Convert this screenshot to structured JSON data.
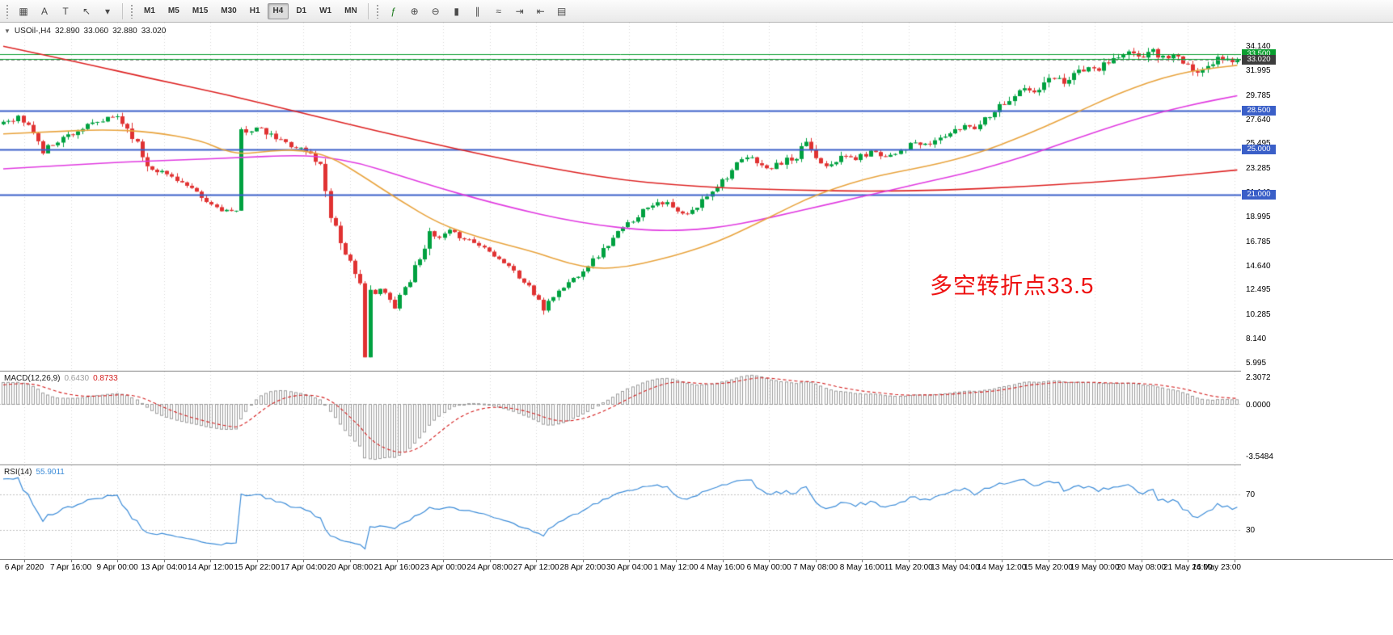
{
  "toolbar": {
    "left_tools": [
      {
        "name": "chart-grid-icon",
        "glyph": "▦"
      },
      {
        "name": "text-annotation-tool",
        "glyph": "A"
      },
      {
        "name": "text-label-tool",
        "glyph": "T"
      },
      {
        "name": "arrow-tool",
        "glyph": "↖"
      },
      {
        "name": "tools-dropdown-icon",
        "glyph": "▾"
      }
    ],
    "timeframes": [
      "M1",
      "M5",
      "M15",
      "M30",
      "H1",
      "H4",
      "D1",
      "W1",
      "MN"
    ],
    "active_timeframe": "H4",
    "right_tools": [
      {
        "name": "indicators-icon",
        "glyph": "ƒ"
      },
      {
        "name": "zoom-in-icon",
        "glyph": "⊕"
      },
      {
        "name": "zoom-out-icon",
        "glyph": "⊖"
      },
      {
        "name": "candlestick-mode-icon",
        "glyph": "▮"
      },
      {
        "name": "bar-chart-mode-icon",
        "glyph": "∥"
      },
      {
        "name": "line-chart-mode-icon",
        "glyph": "≈"
      },
      {
        "name": "auto-scroll-icon",
        "glyph": "⇥"
      },
      {
        "name": "chart-shift-icon",
        "glyph": "⇤"
      },
      {
        "name": "templates-icon",
        "glyph": "▤"
      }
    ]
  },
  "chart": {
    "title": {
      "collapse_glyph": "▼",
      "symbol_period": "USOil-,H4",
      "open": "32.890",
      "high": "33.060",
      "low": "32.880",
      "close": "33.020"
    },
    "annotation": {
      "text": "多空转折点33.5",
      "color": "#ee1111"
    },
    "price_axis": {
      "ticks": [
        "34.140",
        "31.995",
        "29.785",
        "27.640",
        "25.495",
        "23.285",
        "21.140",
        "18.995",
        "16.785",
        "14.640",
        "12.495",
        "10.285",
        "8.140",
        "5.995"
      ],
      "line_labels": [
        {
          "text": "33.500",
          "price": 33.5,
          "bg": "#0a9e2f"
        },
        {
          "text": "33.020",
          "price": 33.02,
          "bg": "#3d3d3d"
        },
        {
          "text": "28.500",
          "price": 28.5,
          "bg": "#3a5fc8"
        },
        {
          "text": "25.000",
          "price": 25.0,
          "bg": "#3a5fc8"
        },
        {
          "text": "21.000",
          "price": 21.0,
          "bg": "#3a5fc8"
        }
      ]
    },
    "time_axis": {
      "labels": [
        "6 Apr 2020",
        "7 Apr 16:00",
        "9 Apr 00:00",
        "13 Apr 04:00",
        "14 Apr 12:00",
        "15 Apr 22:00",
        "17 Apr 04:00",
        "20 Apr 08:00",
        "21 Apr 16:00",
        "23 Apr 00:00",
        "24 Apr 08:00",
        "27 Apr 12:00",
        "28 Apr 20:00",
        "30 Apr 04:00",
        "1 May 12:00",
        "4 May 16:00",
        "6 May 00:00",
        "7 May 08:00",
        "8 May 16:00",
        "11 May 20:00",
        "13 May 04:00",
        "14 May 12:00",
        "15 May 20:00",
        "19 May 00:00",
        "20 May 08:00",
        "21 May 16:00",
        "24 May 23:00"
      ]
    }
  },
  "chart_data": {
    "type": "candlestick",
    "symbol": "USOil-,H4",
    "title": "USOil-,H4 32.890 33.060 32.880 33.020",
    "price_range": [
      5.995,
      34.14
    ],
    "visible_candles": 250,
    "noise_seed": 11,
    "bull_color": "#00a140",
    "bear_color": "#e03232",
    "close_waypoints": [
      [
        0,
        27.5
      ],
      [
        3,
        27.9
      ],
      [
        6,
        26.6
      ],
      [
        8,
        24.8
      ],
      [
        10,
        25.6
      ],
      [
        13,
        26.3
      ],
      [
        16,
        26.9
      ],
      [
        19,
        27.4
      ],
      [
        23,
        28.0
      ],
      [
        26,
        26.3
      ],
      [
        29,
        23.6
      ],
      [
        32,
        23.0
      ],
      [
        35,
        22.4
      ],
      [
        38,
        21.4
      ],
      [
        41,
        20.3
      ],
      [
        44,
        19.7
      ],
      [
        47,
        19.4
      ],
      [
        48,
        26.6
      ],
      [
        51,
        26.9
      ],
      [
        54,
        26.2
      ],
      [
        57,
        25.6
      ],
      [
        60,
        25.1
      ],
      [
        62,
        24.6
      ],
      [
        64,
        23.6
      ],
      [
        65,
        21.5
      ],
      [
        66,
        19.3
      ],
      [
        67,
        18.2
      ],
      [
        68,
        16.8
      ],
      [
        69,
        15.9
      ],
      [
        70,
        14.9
      ],
      [
        71,
        13.6
      ],
      [
        72,
        13.0
      ],
      [
        73,
        6.9
      ],
      [
        74,
        12.6
      ],
      [
        75,
        12.0
      ],
      [
        76,
        12.6
      ],
      [
        77,
        12.2
      ],
      [
        78,
        11.6
      ],
      [
        79,
        11.1
      ],
      [
        80,
        12.1
      ],
      [
        81,
        12.8
      ],
      [
        82,
        13.4
      ],
      [
        84,
        15.6
      ],
      [
        86,
        17.4
      ],
      [
        88,
        17.1
      ],
      [
        90,
        17.7
      ],
      [
        92,
        17.3
      ],
      [
        94,
        17.0
      ],
      [
        96,
        16.5
      ],
      [
        98,
        16.1
      ],
      [
        100,
        15.3
      ],
      [
        102,
        14.7
      ],
      [
        104,
        13.6
      ],
      [
        106,
        12.9
      ],
      [
        108,
        11.4
      ],
      [
        109,
        10.8
      ],
      [
        110,
        11.6
      ],
      [
        112,
        12.4
      ],
      [
        114,
        13.2
      ],
      [
        116,
        13.9
      ],
      [
        118,
        14.8
      ],
      [
        120,
        15.6
      ],
      [
        122,
        16.6
      ],
      [
        124,
        17.6
      ],
      [
        126,
        18.4
      ],
      [
        128,
        19.2
      ],
      [
        130,
        20.0
      ],
      [
        132,
        20.4
      ],
      [
        134,
        20.2
      ],
      [
        136,
        19.4
      ],
      [
        138,
        19.2
      ],
      [
        140,
        19.9
      ],
      [
        142,
        21.0
      ],
      [
        144,
        21.9
      ],
      [
        146,
        22.7
      ],
      [
        148,
        23.6
      ],
      [
        150,
        24.3
      ],
      [
        152,
        24.0
      ],
      [
        154,
        23.2
      ],
      [
        156,
        23.6
      ],
      [
        158,
        24.1
      ],
      [
        160,
        24.0
      ],
      [
        162,
        25.8
      ],
      [
        164,
        24.3
      ],
      [
        166,
        23.7
      ],
      [
        168,
        24.1
      ],
      [
        170,
        24.4
      ],
      [
        172,
        24.2
      ],
      [
        174,
        24.6
      ],
      [
        176,
        24.9
      ],
      [
        178,
        24.4
      ],
      [
        180,
        24.8
      ],
      [
        182,
        25.2
      ],
      [
        184,
        25.6
      ],
      [
        186,
        25.3
      ],
      [
        188,
        25.8
      ],
      [
        190,
        26.3
      ],
      [
        192,
        26.6
      ],
      [
        194,
        27.2
      ],
      [
        196,
        27.0
      ],
      [
        198,
        27.8
      ],
      [
        200,
        28.6
      ],
      [
        202,
        29.2
      ],
      [
        204,
        29.8
      ],
      [
        206,
        30.4
      ],
      [
        208,
        30.0
      ],
      [
        210,
        30.8
      ],
      [
        212,
        31.4
      ],
      [
        214,
        31.1
      ],
      [
        216,
        31.8
      ],
      [
        218,
        32.2
      ],
      [
        220,
        32.0
      ],
      [
        222,
        32.5
      ],
      [
        224,
        33.0
      ],
      [
        226,
        33.3
      ],
      [
        228,
        33.6
      ],
      [
        230,
        33.3
      ],
      [
        232,
        33.8
      ],
      [
        234,
        33.2
      ],
      [
        236,
        33.5
      ],
      [
        238,
        32.7
      ],
      [
        240,
        31.8
      ],
      [
        242,
        32.4
      ],
      [
        244,
        32.9
      ],
      [
        246,
        33.1
      ],
      [
        248,
        32.9
      ],
      [
        249,
        33.0
      ]
    ],
    "prehistory_waypoints": [
      [
        0,
        24.5
      ],
      [
        12,
        21.2
      ],
      [
        24,
        20.0
      ],
      [
        36,
        21.8
      ],
      [
        48,
        24.8
      ],
      [
        59,
        27.3
      ]
    ],
    "hlines": [
      {
        "price": 33.5,
        "color": "#0a9e2f",
        "width": 1,
        "dash": false
      },
      {
        "price": 33.05,
        "color": "#0a9e2f",
        "width": 1,
        "dash": false
      },
      {
        "price": 33.02,
        "color": "#9a9a9a",
        "width": 1,
        "dash": true
      },
      {
        "price": 28.5,
        "color": "#3a5fc8",
        "width": 2,
        "dash": false
      },
      {
        "price": 25.0,
        "color": "#3a5fc8",
        "width": 2,
        "dash": false
      },
      {
        "price": 21.0,
        "color": "#3a5fc8",
        "width": 2,
        "dash": false
      }
    ],
    "moving_averages": [
      {
        "name": "slow-ma-red",
        "color": "#dd2222",
        "points": [
          [
            0,
            34.2
          ],
          [
            15,
            32.8
          ],
          [
            30,
            31.3
          ],
          [
            45,
            29.9
          ],
          [
            60,
            28.3
          ],
          [
            75,
            26.7
          ],
          [
            90,
            25.2
          ],
          [
            105,
            23.8
          ],
          [
            115,
            23.0
          ],
          [
            125,
            22.3
          ],
          [
            135,
            21.9
          ],
          [
            145,
            21.6
          ],
          [
            160,
            21.4
          ],
          [
            175,
            21.3
          ],
          [
            190,
            21.4
          ],
          [
            205,
            21.7
          ],
          [
            220,
            22.1
          ],
          [
            235,
            22.6
          ],
          [
            249,
            23.2
          ]
        ]
      },
      {
        "name": "medium-ma-magenta",
        "color": "#e03ae0",
        "points": [
          [
            0,
            23.3
          ],
          [
            12,
            23.6
          ],
          [
            24,
            23.9
          ],
          [
            36,
            24.1
          ],
          [
            48,
            24.3
          ],
          [
            58,
            24.5
          ],
          [
            64,
            24.4
          ],
          [
            72,
            23.8
          ],
          [
            80,
            22.7
          ],
          [
            88,
            21.6
          ],
          [
            96,
            20.6
          ],
          [
            104,
            19.7
          ],
          [
            112,
            18.9
          ],
          [
            120,
            18.3
          ],
          [
            128,
            17.9
          ],
          [
            134,
            17.8
          ],
          [
            140,
            17.9
          ],
          [
            146,
            18.2
          ],
          [
            152,
            18.7
          ],
          [
            158,
            19.3
          ],
          [
            164,
            19.9
          ],
          [
            170,
            20.5
          ],
          [
            176,
            21.1
          ],
          [
            182,
            21.7
          ],
          [
            188,
            22.3
          ],
          [
            194,
            22.9
          ],
          [
            200,
            23.6
          ],
          [
            206,
            24.4
          ],
          [
            212,
            25.3
          ],
          [
            218,
            26.2
          ],
          [
            224,
            27.1
          ],
          [
            230,
            27.9
          ],
          [
            236,
            28.6
          ],
          [
            242,
            29.2
          ],
          [
            249,
            29.8
          ]
        ]
      },
      {
        "name": "fast-ma-orange",
        "color": "#e8a33d",
        "points": [
          [
            0,
            26.4
          ],
          [
            10,
            26.6
          ],
          [
            20,
            26.8
          ],
          [
            30,
            26.6
          ],
          [
            40,
            25.8
          ],
          [
            44,
            25.0
          ],
          [
            48,
            24.6
          ],
          [
            54,
            24.9
          ],
          [
            60,
            25.0
          ],
          [
            66,
            24.4
          ],
          [
            72,
            22.8
          ],
          [
            80,
            20.5
          ],
          [
            88,
            18.4
          ],
          [
            96,
            17.2
          ],
          [
            102,
            16.5
          ],
          [
            108,
            15.8
          ],
          [
            114,
            14.9
          ],
          [
            120,
            14.4
          ],
          [
            126,
            14.6
          ],
          [
            132,
            15.2
          ],
          [
            138,
            15.9
          ],
          [
            144,
            16.8
          ],
          [
            150,
            18.0
          ],
          [
            156,
            19.3
          ],
          [
            162,
            20.6
          ],
          [
            168,
            21.6
          ],
          [
            174,
            22.4
          ],
          [
            180,
            23.0
          ],
          [
            186,
            23.5
          ],
          [
            192,
            24.1
          ],
          [
            198,
            24.9
          ],
          [
            204,
            25.9
          ],
          [
            210,
            27.0
          ],
          [
            216,
            28.2
          ],
          [
            222,
            29.4
          ],
          [
            228,
            30.5
          ],
          [
            234,
            31.4
          ],
          [
            240,
            32.0
          ],
          [
            245,
            32.3
          ],
          [
            249,
            32.5
          ]
        ]
      }
    ],
    "macd": {
      "label": "MACD(12,26,9)",
      "value_main": "0.6430",
      "value_signal": "0.8733",
      "fast": 12,
      "slow": 26,
      "signal": 9,
      "axis_labels": {
        "top": "2.3072",
        "zero": "0.0000",
        "bottom": "-3.5484"
      },
      "hist_color": "#9c9c9c",
      "signal_color": "#d42020"
    },
    "rsi": {
      "label": "RSI(14)",
      "value": "55.9011",
      "period": 14,
      "levels": [
        70,
        30
      ],
      "level_labels": [
        "70",
        "30"
      ],
      "color": "#3c8cd8"
    }
  }
}
